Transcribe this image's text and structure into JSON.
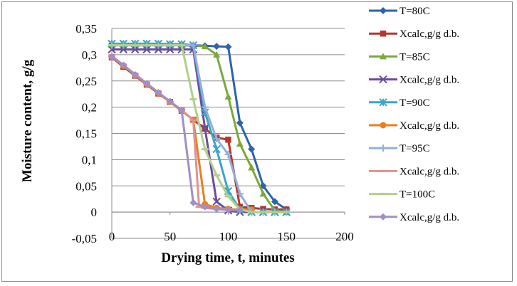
{
  "chart_data": {
    "type": "line",
    "title": "",
    "xlabel": "Drying time, t, minutes",
    "ylabel": "Moisture content, g/g",
    "xlim": [
      0,
      200
    ],
    "ylim": [
      -0.05,
      0.35
    ],
    "x_ticks": [
      "0",
      "50",
      "100",
      "150",
      "200"
    ],
    "y_ticks": [
      "0,35",
      "0,3",
      "0,25",
      "0,2",
      "0,15",
      "0,1",
      "0,05",
      "0",
      "-0,05"
    ],
    "grid": "horizontal",
    "legend_position": "right",
    "series": [
      {
        "name": "T=80C",
        "color": "#2e62ad",
        "marker": "diamond",
        "points": [
          [
            0,
            0.32
          ],
          [
            10,
            0.32
          ],
          [
            20,
            0.32
          ],
          [
            30,
            0.32
          ],
          [
            40,
            0.32
          ],
          [
            50,
            0.32
          ],
          [
            60,
            0.32
          ],
          [
            70,
            0.318
          ],
          [
            80,
            0.317
          ],
          [
            90,
            0.316
          ],
          [
            100,
            0.315
          ],
          [
            110,
            0.17
          ],
          [
            120,
            0.12
          ],
          [
            130,
            0.05
          ],
          [
            140,
            0.02
          ],
          [
            150,
            0.005
          ]
        ]
      },
      {
        "name": "Xcalc,g/g d.b.",
        "color": "#b7352e",
        "marker": "square",
        "points": [
          [
            0,
            0.295
          ],
          [
            10,
            0.277
          ],
          [
            20,
            0.26
          ],
          [
            30,
            0.243
          ],
          [
            40,
            0.226
          ],
          [
            50,
            0.21
          ],
          [
            60,
            0.193
          ],
          [
            70,
            0.176
          ],
          [
            80,
            0.159
          ],
          [
            90,
            0.142
          ],
          [
            100,
            0.138
          ],
          [
            110,
            0.01
          ],
          [
            120,
            0.008
          ],
          [
            130,
            0.006
          ],
          [
            140,
            0.005
          ],
          [
            150,
            0.005
          ]
        ]
      },
      {
        "name": "T=85C",
        "color": "#7da839",
        "marker": "triangle",
        "points": [
          [
            0,
            0.318
          ],
          [
            10,
            0.318
          ],
          [
            20,
            0.318
          ],
          [
            30,
            0.318
          ],
          [
            40,
            0.318
          ],
          [
            50,
            0.318
          ],
          [
            60,
            0.318
          ],
          [
            70,
            0.317
          ],
          [
            80,
            0.316
          ],
          [
            90,
            0.3
          ],
          [
            100,
            0.22
          ],
          [
            110,
            0.13
          ],
          [
            120,
            0.085
          ],
          [
            130,
            0.035
          ],
          [
            140,
            0.003
          ],
          [
            150,
            0.0
          ]
        ]
      },
      {
        "name": "Xcalc,g/g d.b.",
        "color": "#6a4d9c",
        "marker": "x",
        "points": [
          [
            0,
            0.31
          ],
          [
            10,
            0.31
          ],
          [
            20,
            0.31
          ],
          [
            30,
            0.31
          ],
          [
            40,
            0.31
          ],
          [
            50,
            0.31
          ],
          [
            60,
            0.31
          ],
          [
            70,
            0.31
          ],
          [
            80,
            0.16
          ],
          [
            90,
            0.02
          ],
          [
            100,
            0.003
          ],
          [
            110,
            0.0
          ],
          [
            120,
            0.0
          ],
          [
            130,
            0.0
          ],
          [
            140,
            0.0
          ],
          [
            150,
            0.0
          ]
        ]
      },
      {
        "name": "T=90C",
        "color": "#3aa6c5",
        "marker": "star",
        "points": [
          [
            0,
            0.321
          ],
          [
            10,
            0.321
          ],
          [
            20,
            0.321
          ],
          [
            30,
            0.321
          ],
          [
            40,
            0.321
          ],
          [
            50,
            0.32
          ],
          [
            60,
            0.32
          ],
          [
            70,
            0.318
          ],
          [
            80,
            0.19
          ],
          [
            90,
            0.12
          ],
          [
            100,
            0.04
          ],
          [
            110,
            0.005
          ],
          [
            120,
            0.0
          ],
          [
            130,
            0.0
          ],
          [
            140,
            0.0
          ],
          [
            150,
            0.0
          ]
        ]
      },
      {
        "name": "Xcalc,g/g d.b.",
        "color": "#e8801f",
        "marker": "circle",
        "points": [
          [
            0,
            0.296
          ],
          [
            10,
            0.279
          ],
          [
            20,
            0.261
          ],
          [
            30,
            0.244
          ],
          [
            40,
            0.227
          ],
          [
            50,
            0.21
          ],
          [
            60,
            0.193
          ],
          [
            70,
            0.176
          ],
          [
            80,
            0.015
          ],
          [
            90,
            0.008
          ],
          [
            100,
            0.006
          ],
          [
            110,
            0.005
          ],
          [
            120,
            0.005
          ]
        ]
      },
      {
        "name": "T=95C",
        "color": "#93afd9",
        "marker": "plus",
        "points": [
          [
            0,
            0.318
          ],
          [
            10,
            0.318
          ],
          [
            20,
            0.318
          ],
          [
            30,
            0.318
          ],
          [
            40,
            0.318
          ],
          [
            50,
            0.318
          ],
          [
            60,
            0.318
          ],
          [
            70,
            0.318
          ],
          [
            80,
            0.2
          ],
          [
            90,
            0.14
          ],
          [
            100,
            0.11
          ],
          [
            110,
            0.035
          ],
          [
            120,
            0.0
          ],
          [
            130,
            0.0
          ],
          [
            140,
            0.0
          ],
          [
            150,
            0.0
          ]
        ]
      },
      {
        "name": "Xcalc,g/g d.b.",
        "color": "#e1928f",
        "marker": "dash",
        "points": [
          [
            0,
            0.298
          ],
          [
            10,
            0.28
          ],
          [
            20,
            0.263
          ],
          [
            30,
            0.245
          ],
          [
            40,
            0.228
          ],
          [
            50,
            0.21
          ],
          [
            60,
            0.195
          ],
          [
            70,
            0.175
          ],
          [
            75,
            0.01
          ],
          [
            80,
            0.008
          ],
          [
            90,
            0.006
          ],
          [
            100,
            0.005
          ],
          [
            110,
            0.005
          ]
        ]
      },
      {
        "name": "T=100C",
        "color": "#b2cf8a",
        "marker": "dash",
        "points": [
          [
            0,
            0.318
          ],
          [
            10,
            0.318
          ],
          [
            20,
            0.318
          ],
          [
            30,
            0.318
          ],
          [
            40,
            0.318
          ],
          [
            50,
            0.318
          ],
          [
            60,
            0.318
          ],
          [
            70,
            0.215
          ],
          [
            80,
            0.12
          ],
          [
            90,
            0.07
          ],
          [
            100,
            0.03
          ],
          [
            110,
            0.005
          ],
          [
            120,
            0.0
          ],
          [
            130,
            0.0
          ],
          [
            140,
            0.0
          ],
          [
            150,
            0.0
          ]
        ]
      },
      {
        "name": "Xcalc,g/g d.b.",
        "color": "#a08fc4",
        "marker": "diamond",
        "points": [
          [
            0,
            0.296
          ],
          [
            10,
            0.28
          ],
          [
            20,
            0.262
          ],
          [
            30,
            0.245
          ],
          [
            40,
            0.228
          ],
          [
            50,
            0.211
          ],
          [
            60,
            0.194
          ],
          [
            70,
            0.018
          ],
          [
            80,
            0.01
          ],
          [
            90,
            0.006
          ],
          [
            100,
            0.004
          ],
          [
            110,
            0.004
          ]
        ]
      }
    ]
  }
}
